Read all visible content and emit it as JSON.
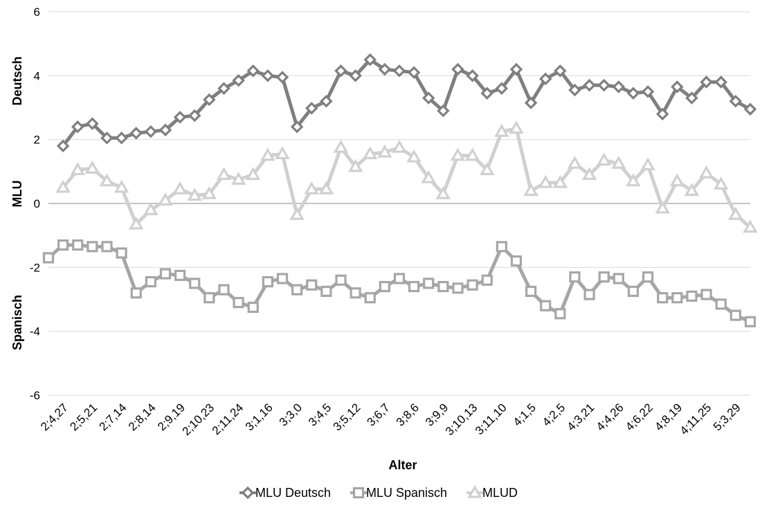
{
  "chart_data": {
    "type": "line",
    "xlabel": "Alter",
    "ylabel": "MLU",
    "ylabel_upper": "Deutsch",
    "ylabel_lower": "Spanisch",
    "ylim": [
      -6,
      6
    ],
    "yticks": [
      -6,
      -4,
      -2,
      0,
      2,
      4,
      6
    ],
    "grid": true,
    "legend_position": "bottom",
    "x_tick_labels": [
      "2;4,27",
      "2;5,21",
      "2;7,14",
      "2;8,14",
      "2;9,19",
      "2;10,23",
      "2;11,24",
      "3;1,16",
      "3;3,0",
      "3;4,5",
      "3;5,12",
      "3;6,7",
      "3;8,6",
      "3;9,9",
      "3;10,13",
      "3;11,10",
      "4;1,5",
      "4;2,5",
      "4;3,21",
      "4;4,26",
      "4;6,22",
      "4;8,19",
      "4;11,25",
      "5;3,29"
    ],
    "series": [
      {
        "name": "MLU Deutsch",
        "marker": "diamond",
        "color": "#7f7f7f",
        "values": [
          null,
          1.8,
          2.4,
          2.5,
          2.05,
          2.05,
          2.2,
          2.25,
          2.3,
          2.7,
          2.75,
          3.25,
          3.6,
          3.85,
          4.15,
          4.0,
          3.95,
          2.4,
          2.98,
          3.2,
          4.15,
          4.0,
          4.5,
          4.2,
          4.15,
          4.1,
          3.3,
          2.9,
          4.2,
          4.0,
          3.45,
          3.6,
          4.2,
          3.15,
          3.9,
          4.15,
          3.55,
          3.7,
          3.7,
          3.65,
          3.45,
          3.5,
          2.8,
          3.65,
          3.3,
          3.8,
          3.8,
          3.2,
          2.95
        ]
      },
      {
        "name": "MLU Spanisch",
        "marker": "square",
        "color": "#a6a6a6",
        "values": [
          -1.7,
          -1.3,
          -1.3,
          -1.35,
          -1.35,
          -1.55,
          -2.8,
          -2.45,
          -2.2,
          -2.25,
          -2.5,
          -2.95,
          -2.7,
          -3.1,
          -3.25,
          -2.45,
          -2.35,
          -2.7,
          -2.55,
          -2.75,
          -2.4,
          -2.8,
          -2.95,
          -2.6,
          -2.35,
          -2.6,
          -2.5,
          -2.6,
          -2.65,
          -2.55,
          -2.4,
          -1.35,
          -1.8,
          -2.75,
          -3.2,
          -3.45,
          -2.3,
          -2.85,
          -2.3,
          -2.35,
          -2.75,
          -2.3,
          -2.95,
          -2.95,
          -2.9,
          -2.85,
          -3.15,
          -3.5,
          -3.7
        ]
      },
      {
        "name": "MLUD",
        "marker": "triangle",
        "color": "#d0d0d0",
        "values": [
          null,
          0.5,
          1.05,
          1.1,
          0.7,
          0.5,
          -0.65,
          -0.2,
          0.1,
          0.45,
          0.25,
          0.3,
          0.9,
          0.75,
          0.9,
          1.5,
          1.55,
          -0.35,
          0.45,
          0.45,
          1.75,
          1.15,
          1.55,
          1.6,
          1.75,
          1.45,
          0.8,
          0.3,
          1.5,
          1.5,
          1.05,
          2.25,
          2.35,
          0.4,
          0.65,
          0.65,
          1.25,
          0.9,
          1.35,
          1.25,
          0.7,
          1.2,
          -0.15,
          0.7,
          0.4,
          0.95,
          0.6,
          -0.35,
          -0.75
        ]
      }
    ]
  }
}
